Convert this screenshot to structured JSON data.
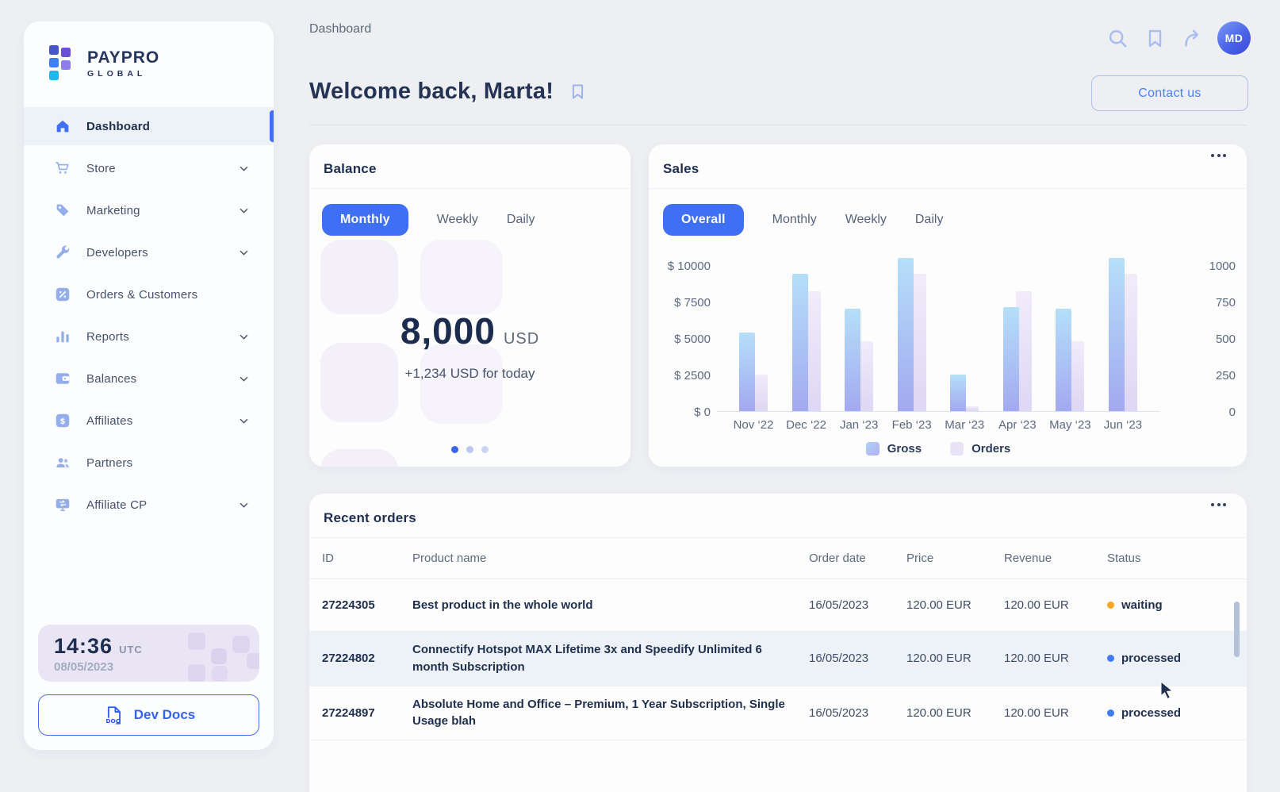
{
  "brand": {
    "line1": "PAYPRO",
    "line2": "GLOBAL"
  },
  "topbar": {
    "breadcrumb": "Dashboard",
    "heading": "Welcome back, Marta!",
    "contact_button": "Contact us",
    "avatar_initials": "MD"
  },
  "sidebar": {
    "items": [
      {
        "label": "Dashboard",
        "icon": "home-icon",
        "active": true,
        "chevron": false
      },
      {
        "label": "Store",
        "icon": "cart-icon",
        "active": false,
        "chevron": true
      },
      {
        "label": "Marketing",
        "icon": "tag-icon",
        "active": false,
        "chevron": true
      },
      {
        "label": "Developers",
        "icon": "wrench-icon",
        "active": false,
        "chevron": true
      },
      {
        "label": "Orders & Customers",
        "icon": "percent-icon",
        "active": false,
        "chevron": false
      },
      {
        "label": "Reports",
        "icon": "bar-chart-icon",
        "active": false,
        "chevron": true
      },
      {
        "label": "Balances",
        "icon": "wallet-icon",
        "active": false,
        "chevron": true
      },
      {
        "label": "Affiliates",
        "icon": "dollar-icon",
        "active": false,
        "chevron": true
      },
      {
        "label": "Partners",
        "icon": "people-icon",
        "active": false,
        "chevron": false
      },
      {
        "label": "Affiliate CP",
        "icon": "monitor-icon",
        "active": false,
        "chevron": true
      }
    ],
    "clock": {
      "time": "14:36",
      "timezone": "UTC",
      "date": "08/05/2023"
    },
    "dev_docs": {
      "label": "Dev Docs",
      "icon_text": "DOC"
    }
  },
  "balance": {
    "title": "Balance",
    "tabs": [
      "Monthly",
      "Weekly",
      "Daily"
    ],
    "active_tab": "Monthly",
    "amount": "8,000",
    "currency": "USD",
    "today_change": "+1,234 USD for today",
    "carousel_dots": 3,
    "active_dot": 0
  },
  "sales": {
    "title": "Sales",
    "tabs": [
      "Overall",
      "Monthly",
      "Weekly",
      "Daily"
    ],
    "active_tab": "Overall"
  },
  "chart_data": {
    "type": "bar",
    "title": "Sales",
    "categories": [
      "Nov ‘22",
      "Dec ‘22",
      "Jan ‘23",
      "Feb ‘23",
      "Mar ‘23",
      "Apr ‘23",
      "May ‘23",
      "Jun ‘23"
    ],
    "series": [
      {
        "name": "Gross",
        "axis": "left",
        "color_top": "#B5DFF9",
        "color_bottom": "#A3A9F0",
        "values": [
          5400,
          9400,
          7000,
          10500,
          2500,
          7100,
          7000,
          10500
        ]
      },
      {
        "name": "Orders",
        "axis": "right",
        "color_top": "#F1ECFA",
        "color_bottom": "#DED7F5",
        "values": [
          250,
          820,
          480,
          940,
          30,
          820,
          480,
          940
        ]
      }
    ],
    "left_axis": {
      "tick_labels": [
        "$ 0",
        "$ 2500",
        "$ 5000",
        "$ 7500",
        "$ 10000"
      ],
      "range": [
        0,
        10000
      ]
    },
    "right_axis": {
      "tick_labels": [
        "0",
        "250",
        "500",
        "750",
        "1000"
      ],
      "range": [
        0,
        1000
      ]
    },
    "legend": [
      "Gross",
      "Orders"
    ],
    "legend_position": "bottom",
    "grid": false
  },
  "orders": {
    "title": "Recent orders",
    "columns": [
      "ID",
      "Product name",
      "Order date",
      "Price",
      "Revenue",
      "Status"
    ],
    "rows": [
      {
        "id": "27224305",
        "product": "Best product in the whole world",
        "order_date": "16/05/2023",
        "price": "120.00 EUR",
        "revenue": "120.00 EUR",
        "status": "waiting",
        "status_color": "#F6A623"
      },
      {
        "id": "27224802",
        "product": "Connectify Hotspot MAX Lifetime 3x and Speedify Unlimited 6 month Subscription",
        "order_date": "16/05/2023",
        "price": "120.00 EUR",
        "revenue": "120.00 EUR",
        "status": "processed",
        "status_color": "#3F7BF6"
      },
      {
        "id": "27224897",
        "product": "Absolute Home and Office – Premium, 1 Year Subscription, Single Usage blah",
        "order_date": "16/05/2023",
        "price": "120.00 EUR",
        "revenue": "120.00 EUR",
        "status": "processed",
        "status_color": "#3F7BF6"
      }
    ]
  },
  "colors": {
    "accent": "#3F6FF5",
    "waiting_status": "#F6A623",
    "processed_status": "#3F7BF6"
  }
}
